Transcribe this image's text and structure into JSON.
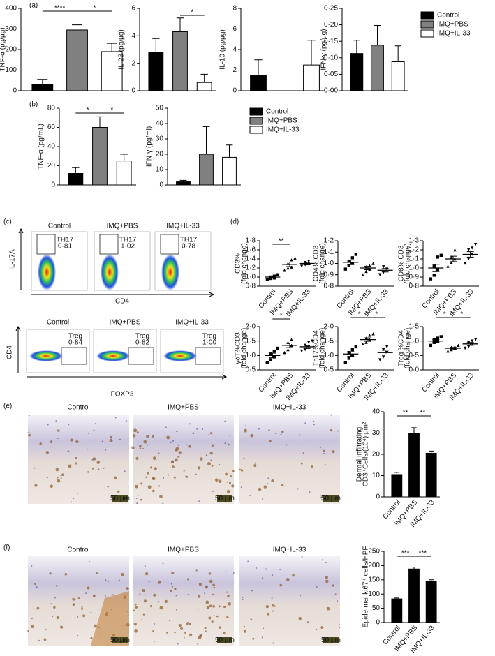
{
  "panels": {
    "a": "(a)",
    "b": "(b)",
    "c": "(c)",
    "d": "(d)",
    "e": "(e)",
    "f": "(f)"
  },
  "chart_data": [
    {
      "type": "bar",
      "ylabel": [
        "TNF-α (pg/μg)"
      ],
      "values": [
        30,
        295,
        190
      ],
      "errors": [
        25,
        25,
        40
      ],
      "colors": [
        "#000000",
        "#808080",
        "#ffffff"
      ],
      "ylim": [
        0,
        400
      ],
      "yticks": [
        0,
        100,
        200,
        300,
        400
      ],
      "significance": [
        "****",
        "*"
      ]
    },
    {
      "type": "bar",
      "ylabel": [
        "IL-23 (pg/μg)"
      ],
      "values": [
        2.8,
        4.3,
        0.6
      ],
      "errors": [
        1.0,
        1.0,
        0.6
      ],
      "colors": [
        "#000000",
        "#808080",
        "#ffffff"
      ],
      "ylim": [
        0,
        6
      ],
      "yticks": [
        0,
        2,
        4,
        6
      ],
      "significance": [
        "*"
      ]
    },
    {
      "type": "bar",
      "ylabel": [
        "IL-10 (pg/μg)"
      ],
      "values": [
        1.5,
        0,
        2.5
      ],
      "errors": [
        1.5,
        0,
        2.4
      ],
      "colors": [
        "#000000",
        "#808080",
        "#ffffff"
      ],
      "ylim": [
        0,
        8
      ],
      "yticks": [
        0,
        2,
        4,
        6,
        8
      ]
    },
    {
      "type": "bar",
      "ylabel": [
        "IFN-γ (pg/μg)"
      ],
      "categories": [
        "Control",
        "IMQ+PBS",
        "IMQ+IL-33"
      ],
      "values": [
        0.113,
        0.138,
        0.088
      ],
      "errors": [
        0.04,
        0.06,
        0.048
      ],
      "colors": [
        "#000000",
        "#808080",
        "#ffffff"
      ],
      "ylim": [
        0,
        0.25
      ],
      "yticks": [
        {
          "value": 0,
          "label": "0·00"
        },
        {
          "value": 0.05,
          "label": "0·05"
        },
        {
          "value": 0.1,
          "label": "0·10"
        },
        {
          "value": 0.15,
          "label": "0·15"
        },
        {
          "value": 0.2,
          "label": "0·20"
        },
        {
          "value": 0.25,
          "label": "0·25"
        }
      ],
      "legend": "right"
    },
    {
      "type": "bar",
      "ylabel": [
        "TNF-α (pg/mL)"
      ],
      "values": [
        12,
        60,
        25
      ],
      "errors": [
        6,
        11,
        7
      ],
      "colors": [
        "#000000",
        "#808080",
        "#ffffff"
      ],
      "ylim": [
        0,
        80
      ],
      "yticks": [
        0,
        20,
        40,
        60,
        80
      ],
      "significance": [
        "*",
        "*"
      ]
    },
    {
      "type": "bar",
      "ylabel": [
        "IFN-γ (pg/ml)"
      ],
      "categories": [
        "Control",
        "IMQ+PBS",
        "IMQ+IL-33"
      ],
      "values": [
        2,
        20,
        18
      ],
      "errors": [
        1,
        18,
        8
      ],
      "colors": [
        "#000000",
        "#808080",
        "#ffffff"
      ],
      "ylim": [
        0,
        50
      ],
      "yticks": [
        0,
        10,
        20,
        30,
        40,
        50
      ],
      "legend": "right"
    },
    {
      "type": "dot",
      "ylabel": [
        "CD3%",
        "(fold change)"
      ],
      "categories": [
        "Control",
        "IMQ+PBS",
        "IMQ+IL-33"
      ],
      "points": [
        [
          0.95,
          0.97,
          0.98,
          1.0,
          1.02,
          1.05
        ],
        [
          1.15,
          1.2,
          1.22,
          1.3,
          1.38,
          1.42
        ],
        [
          1.24,
          1.27,
          1.3,
          1.32,
          1.35
        ]
      ],
      "means": [
        1.0,
        1.28,
        1.3
      ],
      "sems": [
        0.02,
        0.05,
        0.03
      ],
      "ylim": [
        0.8,
        1.8
      ],
      "yticks": [
        {
          "value": 0.8,
          "label": "0·8"
        },
        {
          "value": 1.0,
          "label": "1·0"
        },
        {
          "value": 1.2,
          "label": "1·2"
        },
        {
          "value": 1.4,
          "label": "1·4"
        },
        {
          "value": 1.6,
          "label": "1·6"
        },
        {
          "value": 1.8,
          "label": "1·8"
        }
      ],
      "significance": [
        "**"
      ]
    },
    {
      "type": "dot",
      "ylabel": [
        "CD4% CD3",
        "(fold change)"
      ],
      "categories": [
        "Control",
        "IMQ+PBS",
        "IMQ+IL-33"
      ],
      "points": [
        [
          0.95,
          0.98,
          1.0,
          1.02,
          1.05,
          1.08
        ],
        [
          0.9,
          0.93,
          0.95,
          0.97,
          0.98,
          1.0
        ],
        [
          0.9,
          0.92,
          0.95,
          0.97
        ]
      ],
      "means": [
        1.01,
        0.96,
        0.94
      ],
      "sems": [
        0.02,
        0.015,
        0.015
      ],
      "ylim": [
        0.8,
        1.2
      ],
      "yticks": [
        {
          "value": 0.8,
          "label": "0·8"
        },
        {
          "value": 0.9,
          "label": "0·9"
        },
        {
          "value": 1.0,
          "label": "1·0"
        },
        {
          "value": 1.1,
          "label": "1·1"
        },
        {
          "value": 1.2,
          "label": "1·2"
        }
      ]
    },
    {
      "type": "dot",
      "ylabel": [
        "CD8% CD3",
        "(fold change)"
      ],
      "categories": [
        "Control",
        "IMQ+PBS",
        "IMQ+IL-33"
      ],
      "points": [
        [
          0.88,
          0.92,
          0.98,
          1.02,
          1.12,
          1.14
        ],
        [
          1.02,
          1.06,
          1.1,
          1.12,
          1.2
        ],
        [
          1.05,
          1.1,
          1.15,
          1.2,
          1.22,
          1.26
        ]
      ],
      "means": [
        1.0,
        1.1,
        1.15
      ],
      "sems": [
        0.04,
        0.03,
        0.03
      ],
      "ylim": [
        0.8,
        1.3
      ],
      "yticks": [
        {
          "value": 0.8,
          "label": "0·8"
        },
        {
          "value": 0.9,
          "label": "0·9"
        },
        {
          "value": 1.0,
          "label": "1·0"
        },
        {
          "value": 1.1,
          "label": "1·1"
        },
        {
          "value": 1.2,
          "label": "1·2"
        },
        {
          "value": 1.3,
          "label": "1·3"
        }
      ]
    },
    {
      "type": "dot",
      "ylabel": [
        "γδT%CD3",
        "(fold change)"
      ],
      "categories": [
        "Control",
        "IMQ+PBS",
        "IMQ+IL-33"
      ],
      "points": [
        [
          0.75,
          0.85,
          0.95,
          1.05,
          1.15,
          1.25
        ],
        [
          1.1,
          1.2,
          1.35,
          1.45,
          1.55
        ],
        [
          1.15,
          1.2,
          1.3,
          1.35,
          1.45,
          1.5
        ]
      ],
      "means": [
        1.0,
        1.35,
        1.3
      ],
      "sems": [
        0.08,
        0.08,
        0.06
      ],
      "ylim": [
        0.5,
        2.0
      ],
      "yticks": [
        {
          "value": 0.5,
          "label": "0·5"
        },
        {
          "value": 1.0,
          "label": "1·0"
        },
        {
          "value": 1.5,
          "label": "1·5"
        },
        {
          "value": 2.0,
          "label": "2·0"
        }
      ],
      "significance": [
        "*"
      ]
    },
    {
      "type": "dot",
      "ylabel": [
        "Th17%CD4",
        "(fold change)"
      ],
      "categories": [
        "Control",
        "IMQ+PBS",
        "IMQ+IL-33"
      ],
      "points": [
        [
          0.75,
          0.9,
          1.0,
          1.1,
          1.2,
          1.3
        ],
        [
          1.4,
          1.45,
          1.55,
          1.6,
          1.7,
          1.75
        ],
        [
          0.85,
          0.95,
          1.1,
          1.2,
          1.3
        ]
      ],
      "means": [
        1.05,
        1.55,
        1.1
      ],
      "sems": [
        0.08,
        0.06,
        0.08
      ],
      "ylim": [
        0.5,
        2.0
      ],
      "yticks": [
        {
          "value": 0.5,
          "label": "0·5"
        },
        {
          "value": 1.0,
          "label": "1·0"
        },
        {
          "value": 1.5,
          "label": "1·5"
        },
        {
          "value": 2.0,
          "label": "2·0"
        }
      ],
      "significance": [
        "*",
        "*"
      ]
    },
    {
      "type": "dot",
      "ylabel": [
        "Treg %CD4",
        "(fold change)"
      ],
      "categories": [
        "Control",
        "IMQ+PBS",
        "IMQ+IL-33"
      ],
      "points": [
        [
          0.85,
          0.95,
          1.0,
          1.05,
          1.1,
          1.15
        ],
        [
          0.65,
          0.7,
          0.75,
          0.78,
          0.8,
          0.85
        ],
        [
          0.75,
          0.8,
          0.9,
          0.95,
          1.0,
          1.05
        ]
      ],
      "means": [
        1.0,
        0.75,
        0.9
      ],
      "sems": [
        0.05,
        0.03,
        0.05
      ],
      "ylim": [
        0,
        1.5
      ],
      "yticks": [
        {
          "value": 0,
          "label": "0·0"
        },
        {
          "value": 0.5,
          "label": "0·5"
        },
        {
          "value": 1.0,
          "label": "1·0"
        },
        {
          "value": 1.5,
          "label": "1·5"
        }
      ],
      "significance": [
        "*",
        "*"
      ]
    },
    {
      "type": "bar",
      "ylabel": [
        "Dermal Infiltrating",
        "CD3⁺Cells/(10⁴) μm²"
      ],
      "categories": [
        "Control",
        "IMQ+PBS",
        "IMQ+IL-33"
      ],
      "values": [
        10.5,
        30,
        20.5
      ],
      "errors": [
        1,
        2.5,
        1
      ],
      "colors": [
        "#000000",
        "#000000",
        "#000000"
      ],
      "ylim": [
        0,
        40
      ],
      "yticks": [
        0,
        10,
        20,
        30,
        40
      ],
      "significance": [
        "**",
        "**"
      ]
    },
    {
      "type": "bar",
      "ylabel": [
        "Epidermal ki67⁺ cells/HPF"
      ],
      "categories": [
        "Control",
        "IMQ+PBS",
        "IMQ+IL-33"
      ],
      "values": [
        83,
        188,
        145
      ],
      "errors": [
        3,
        7,
        5
      ],
      "colors": [
        "#000000",
        "#000000",
        "#000000"
      ],
      "ylim": [
        0,
        250
      ],
      "yticks": [
        0,
        50,
        100,
        150,
        200,
        250
      ],
      "significance": [
        "***",
        "***"
      ]
    }
  ],
  "flow": {
    "titles": [
      "Control",
      "IMQ+PBS",
      "IMQ+IL-33"
    ],
    "top": {
      "y_axis": "IL-17A",
      "x_axis": "CD4",
      "gate": "TH17",
      "percents": [
        "0·81",
        "1·02",
        "0·78"
      ]
    },
    "bottom": {
      "y_axis": "CD4",
      "x_axis": "FOXP3",
      "gate": "Treg",
      "percents": [
        "0·84",
        "0·82",
        "1·00"
      ]
    }
  },
  "histology": {
    "titles": [
      "Control",
      "IMQ+PBS",
      "IMQ+IL-33"
    ],
    "scale": "50 μm"
  }
}
